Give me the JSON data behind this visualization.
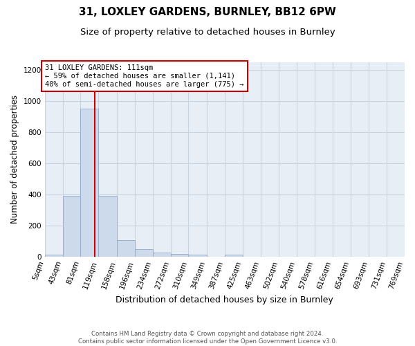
{
  "title1": "31, LOXLEY GARDENS, BURNLEY, BB12 6PW",
  "title2": "Size of property relative to detached houses in Burnley",
  "xlabel": "Distribution of detached houses by size in Burnley",
  "ylabel": "Number of detached properties",
  "footnote": "Contains HM Land Registry data © Crown copyright and database right 2024.\nContains public sector information licensed under the Open Government Licence v3.0.",
  "bin_edges": [
    5,
    43,
    81,
    119,
    158,
    196,
    234,
    272,
    310,
    349,
    387,
    425,
    463,
    502,
    540,
    578,
    616,
    654,
    693,
    731,
    769
  ],
  "bar_heights": [
    13,
    393,
    950,
    390,
    107,
    50,
    25,
    15,
    13,
    0,
    13,
    0,
    0,
    0,
    0,
    0,
    0,
    0,
    0,
    0
  ],
  "bar_color": "#cddaeb",
  "bar_edge_color": "#90aacb",
  "property_size": 111,
  "red_line_color": "#cc0000",
  "annotation_line1": "31 LOXLEY GARDENS: 111sqm",
  "annotation_line2": "← 59% of detached houses are smaller (1,141)",
  "annotation_line3": "40% of semi-detached houses are larger (775) →",
  "annotation_box_color": "#cc0000",
  "ylim": [
    0,
    1250
  ],
  "yticks": [
    0,
    200,
    400,
    600,
    800,
    1000,
    1200
  ],
  "grid_color": "#c8d4e0",
  "bg_color": "#e8eef5",
  "title1_fontsize": 11,
  "title2_fontsize": 9.5,
  "xlabel_fontsize": 9,
  "ylabel_fontsize": 8.5,
  "tick_fontsize": 7.5,
  "annot_fontsize": 7.5
}
